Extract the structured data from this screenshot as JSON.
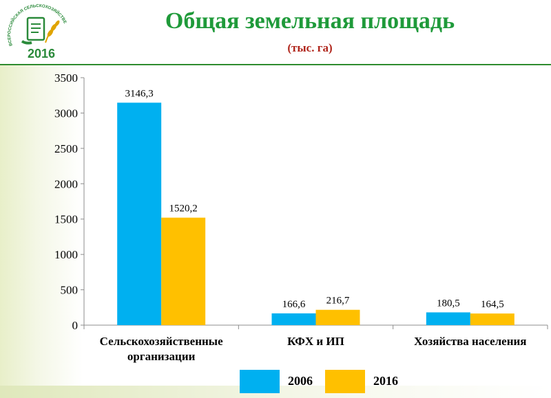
{
  "logo": {
    "arc_text": "ВСЕРОССИЙСКАЯ СЕЛЬСКОХОЗЯЙСТВЕННАЯ ПЕРЕПИСЬ",
    "year": "2016",
    "icon": "census-wheat-logo"
  },
  "header": {
    "title": "Общая земельная площадь",
    "subtitle": "(тыс. га)"
  },
  "colors": {
    "series_2006": "#00b0f0",
    "series_2016": "#ffc000",
    "title": "#1f9a3a",
    "subtitle": "#b0261c"
  },
  "chart_data": {
    "type": "bar",
    "title": "Общая земельная площадь",
    "subtitle": "(тыс. га)",
    "categories": [
      [
        "Сельскохозяйственные",
        "организации"
      ],
      [
        "КФХ и ИП"
      ],
      [
        "Хозяйства населения"
      ]
    ],
    "series": [
      {
        "name": "2006",
        "values": [
          3146.3,
          166.6,
          180.5
        ],
        "labels": [
          "3146,3",
          "166,6",
          "180,5"
        ]
      },
      {
        "name": "2016",
        "values": [
          1520.2,
          216.7,
          164.5
        ],
        "labels": [
          "1520,2",
          "216,7",
          "164,5"
        ]
      }
    ],
    "ylim": [
      0,
      3500
    ],
    "yticks": [
      "0",
      "500",
      "1000",
      "1500",
      "2000",
      "2500",
      "3000",
      "3500"
    ],
    "grid": false,
    "legend": "bottom"
  }
}
